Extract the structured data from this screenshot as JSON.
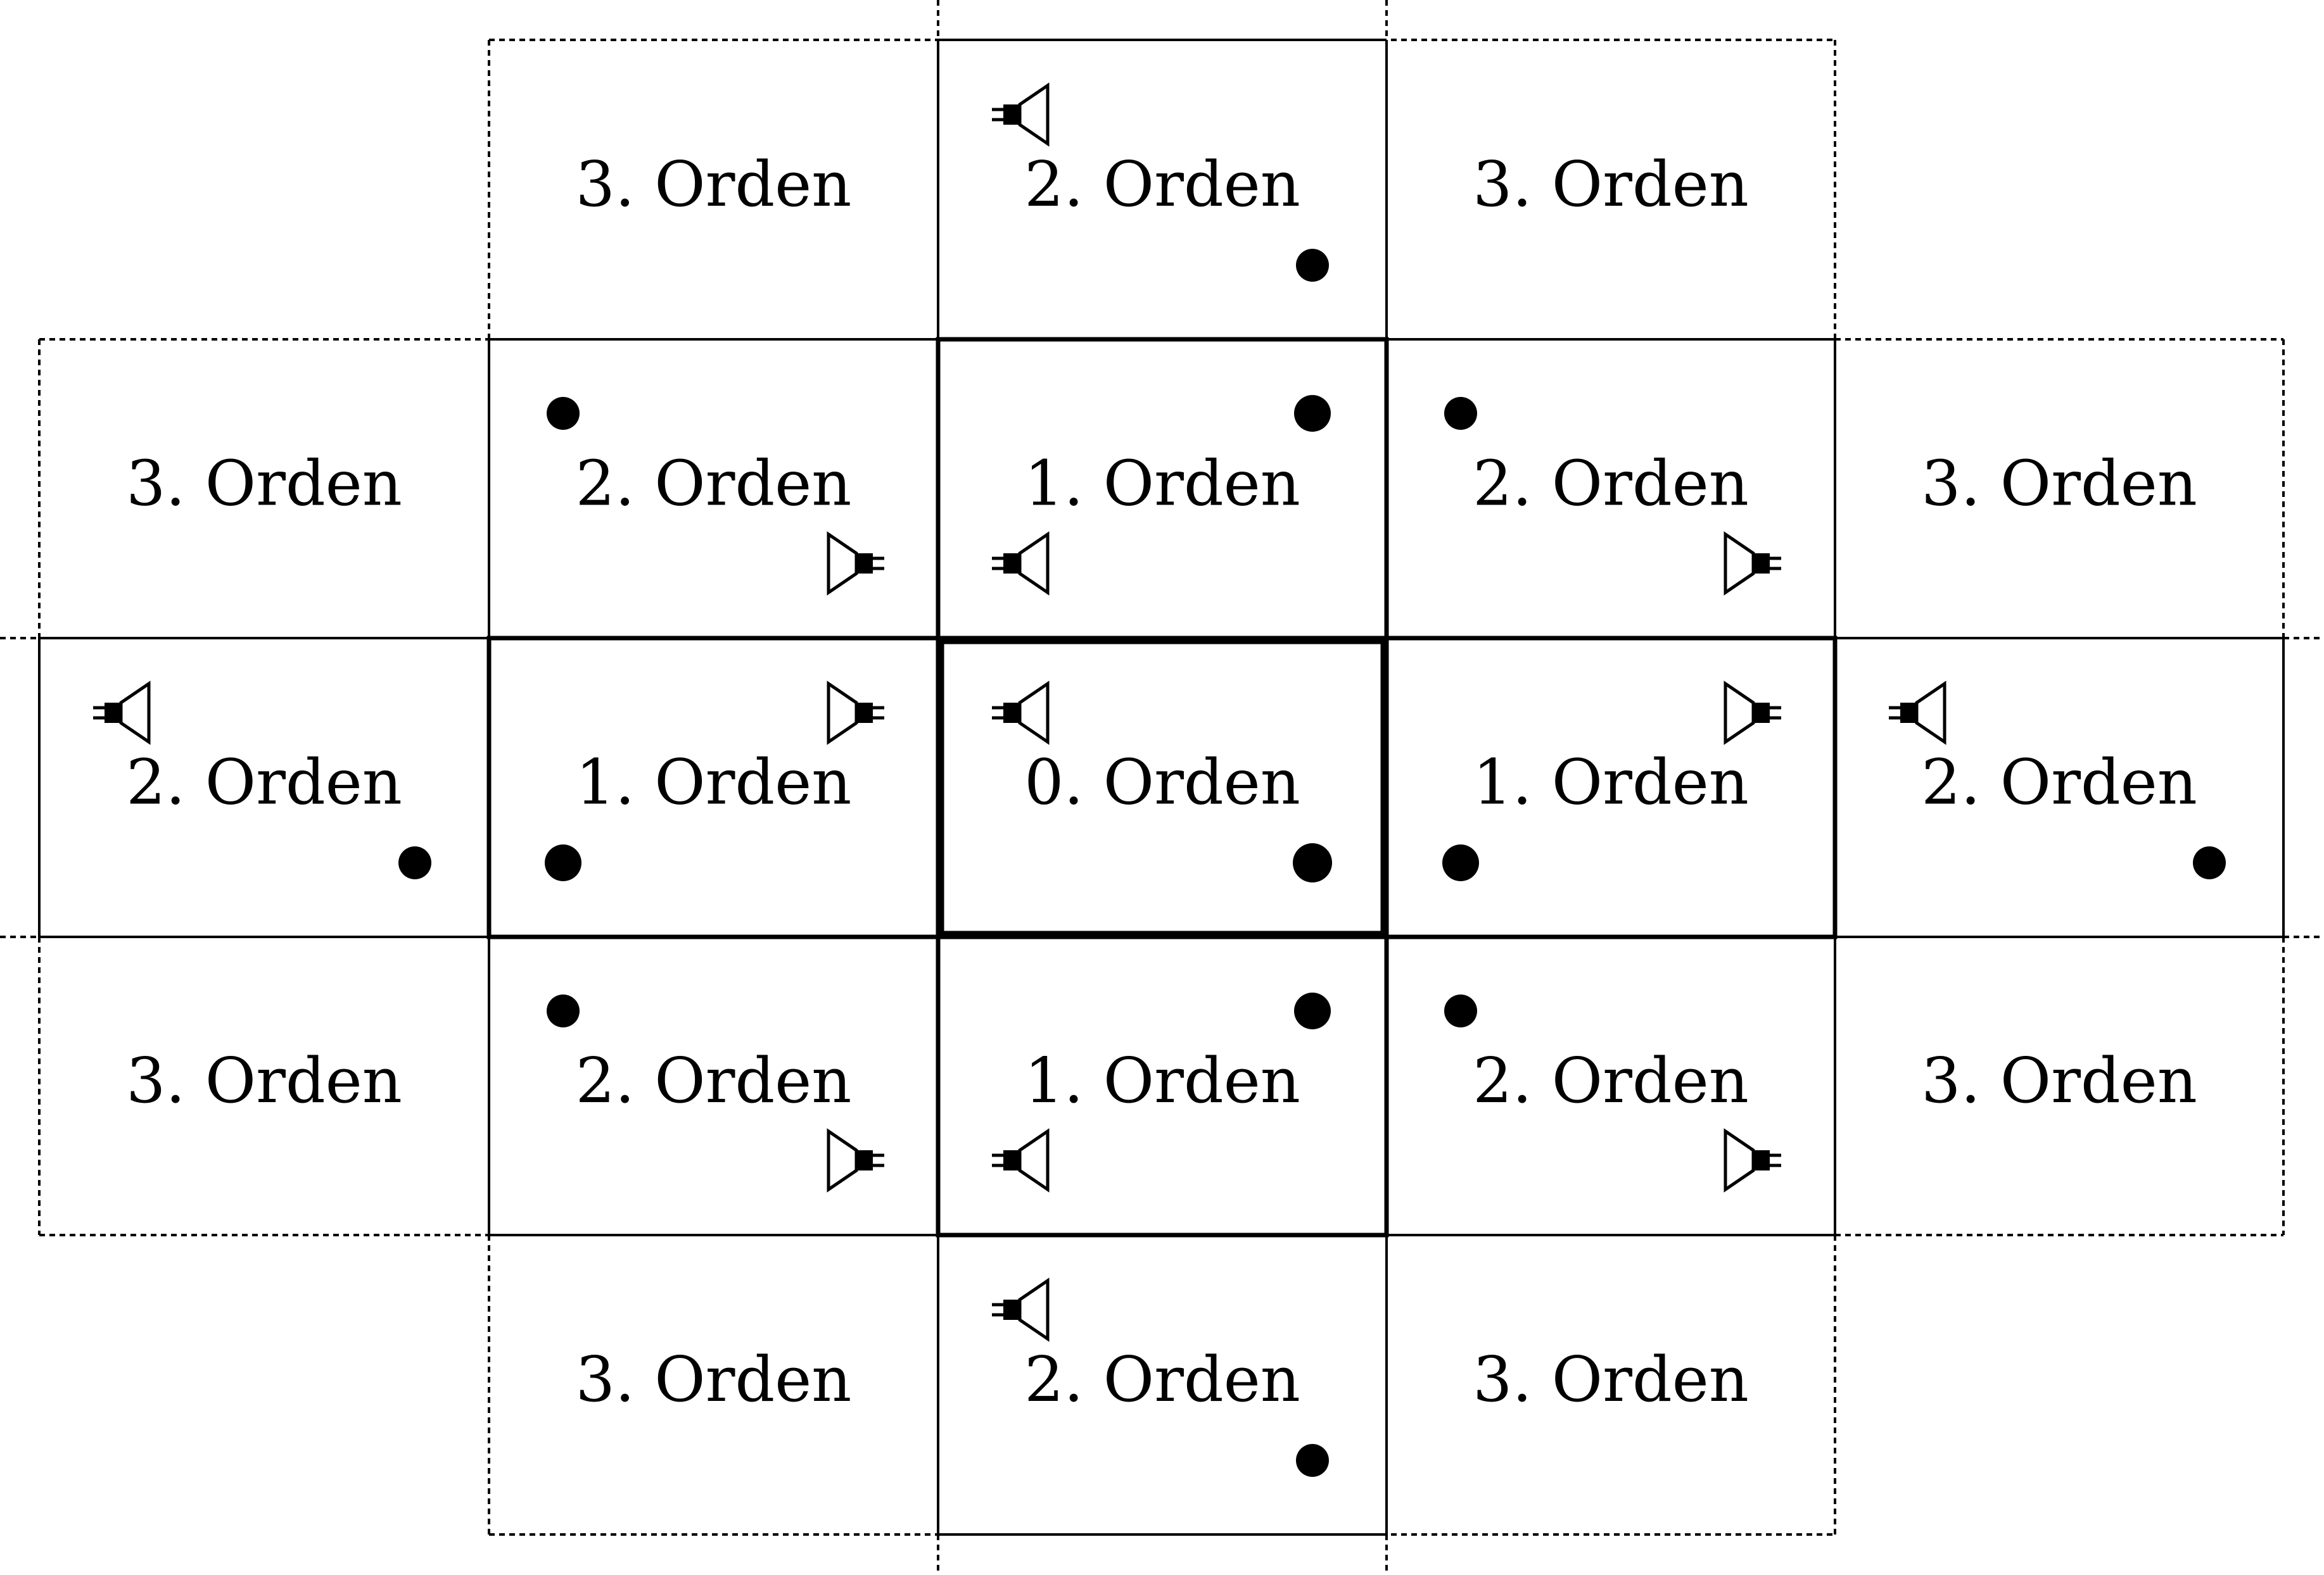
{
  "colors": {
    "ink": "#000000",
    "paper": "#ffffff"
  },
  "cells": [
    {
      "id": "r0c1",
      "label": "3. Orden",
      "order": 3,
      "speaker": null,
      "dot": null
    },
    {
      "id": "r0c2",
      "label": "2. Orden",
      "order": 2,
      "speaker": "left-top",
      "dot": "right-bottom"
    },
    {
      "id": "r0c3",
      "label": "3. Orden",
      "order": 3,
      "speaker": null,
      "dot": null
    },
    {
      "id": "r1c0",
      "label": "3. Orden",
      "order": 3,
      "speaker": null,
      "dot": null
    },
    {
      "id": "r1c1",
      "label": "2. Orden",
      "order": 2,
      "speaker": "right-bottom",
      "dot": "left-top"
    },
    {
      "id": "r1c2",
      "label": "1. Orden",
      "order": 1,
      "speaker": "left-bottom",
      "dot": "right-top"
    },
    {
      "id": "r1c3",
      "label": "2. Orden",
      "order": 2,
      "speaker": "right-bottom",
      "dot": "left-top"
    },
    {
      "id": "r1c4",
      "label": "3. Orden",
      "order": 3,
      "speaker": null,
      "dot": null
    },
    {
      "id": "r2c0",
      "label": "2. Orden",
      "order": 2,
      "speaker": "left-top",
      "dot": "right-bottom"
    },
    {
      "id": "r2c1",
      "label": "1. Orden",
      "order": 1,
      "speaker": "right-top",
      "dot": "left-bottom"
    },
    {
      "id": "r2c2",
      "label": "0. Orden",
      "order": 0,
      "speaker": "left-top",
      "dot": "right-bottom"
    },
    {
      "id": "r2c3",
      "label": "1. Orden",
      "order": 1,
      "speaker": "right-top",
      "dot": "left-bottom"
    },
    {
      "id": "r2c4",
      "label": "2. Orden",
      "order": 2,
      "speaker": "left-top",
      "dot": "right-bottom"
    },
    {
      "id": "r3c0",
      "label": "3. Orden",
      "order": 3,
      "speaker": null,
      "dot": null
    },
    {
      "id": "r3c1",
      "label": "2. Orden",
      "order": 2,
      "speaker": "right-bottom",
      "dot": "left-top"
    },
    {
      "id": "r3c2",
      "label": "1. Orden",
      "order": 1,
      "speaker": "left-bottom",
      "dot": "right-top"
    },
    {
      "id": "r3c3",
      "label": "2. Orden",
      "order": 2,
      "speaker": "right-bottom",
      "dot": "left-top"
    },
    {
      "id": "r3c4",
      "label": "3. Orden",
      "order": 3,
      "speaker": null,
      "dot": null
    },
    {
      "id": "r4c1",
      "label": "3. Orden",
      "order": 3,
      "speaker": null,
      "dot": null
    },
    {
      "id": "r4c2",
      "label": "2. Orden",
      "order": 2,
      "speaker": "left-top",
      "dot": "right-bottom"
    },
    {
      "id": "r4c3",
      "label": "3. Orden",
      "order": 3,
      "speaker": null,
      "dot": null
    }
  ]
}
